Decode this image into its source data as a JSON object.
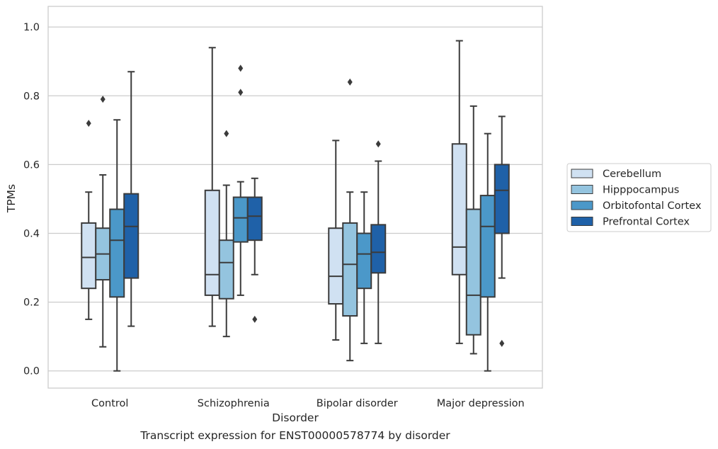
{
  "chart_data": {
    "type": "boxplot",
    "xlabel": "Disorder",
    "ylabel": "TPMs",
    "ylim": [
      -0.05,
      1.06
    ],
    "yticks": [
      0.0,
      0.2,
      0.4,
      0.6,
      0.8,
      1.0
    ],
    "grid": true,
    "legend_position": "right",
    "categories": [
      "Control",
      "Schizophrenia",
      "Bipolar disorder",
      "Major depression"
    ],
    "series": [
      {
        "name": "Cerebellum",
        "color": "#d0e1f2",
        "boxes": [
          {
            "whisker_low": 0.15,
            "q1": 0.24,
            "median": 0.33,
            "q3": 0.43,
            "whisker_high": 0.52,
            "outliers": [
              0.72
            ]
          },
          {
            "whisker_low": 0.13,
            "q1": 0.22,
            "median": 0.28,
            "q3": 0.525,
            "whisker_high": 0.94,
            "outliers": []
          },
          {
            "whisker_low": 0.09,
            "q1": 0.195,
            "median": 0.275,
            "q3": 0.415,
            "whisker_high": 0.67,
            "outliers": []
          },
          {
            "whisker_low": 0.08,
            "q1": 0.28,
            "median": 0.36,
            "q3": 0.66,
            "whisker_high": 0.96,
            "outliers": []
          }
        ]
      },
      {
        "name": "Hipppocampus",
        "color": "#94c4df",
        "boxes": [
          {
            "whisker_low": 0.07,
            "q1": 0.265,
            "median": 0.34,
            "q3": 0.415,
            "whisker_high": 0.57,
            "outliers": [
              0.79
            ]
          },
          {
            "whisker_low": 0.1,
            "q1": 0.21,
            "median": 0.315,
            "q3": 0.38,
            "whisker_high": 0.54,
            "outliers": [
              0.69
            ]
          },
          {
            "whisker_low": 0.03,
            "q1": 0.16,
            "median": 0.31,
            "q3": 0.43,
            "whisker_high": 0.52,
            "outliers": [
              0.84
            ]
          },
          {
            "whisker_low": 0.05,
            "q1": 0.105,
            "median": 0.22,
            "q3": 0.47,
            "whisker_high": 0.77,
            "outliers": []
          }
        ]
      },
      {
        "name": "Orbitofontal Cortex",
        "color": "#4b98c9",
        "boxes": [
          {
            "whisker_low": 0.0,
            "q1": 0.215,
            "median": 0.38,
            "q3": 0.47,
            "whisker_high": 0.73,
            "outliers": []
          },
          {
            "whisker_low": 0.22,
            "q1": 0.375,
            "median": 0.445,
            "q3": 0.505,
            "whisker_high": 0.55,
            "outliers": [
              0.81,
              0.88
            ]
          },
          {
            "whisker_low": 0.08,
            "q1": 0.24,
            "median": 0.34,
            "q3": 0.4,
            "whisker_high": 0.52,
            "outliers": []
          },
          {
            "whisker_low": 0.0,
            "q1": 0.215,
            "median": 0.42,
            "q3": 0.51,
            "whisker_high": 0.69,
            "outliers": []
          }
        ]
      },
      {
        "name": "Prefrontal Cortex",
        "color": "#1f61a8",
        "boxes": [
          {
            "whisker_low": 0.13,
            "q1": 0.27,
            "median": 0.42,
            "q3": 0.515,
            "whisker_high": 0.87,
            "outliers": []
          },
          {
            "whisker_low": 0.28,
            "q1": 0.38,
            "median": 0.45,
            "q3": 0.505,
            "whisker_high": 0.56,
            "outliers": [
              0.15
            ]
          },
          {
            "whisker_low": 0.08,
            "q1": 0.285,
            "median": 0.345,
            "q3": 0.425,
            "whisker_high": 0.61,
            "outliers": [
              0.66
            ]
          },
          {
            "whisker_low": 0.27,
            "q1": 0.4,
            "median": 0.525,
            "q3": 0.6,
            "whisker_high": 0.74,
            "outliers": [
              0.08
            ]
          }
        ]
      }
    ],
    "caption": "Transcript expression for ENST00000578774 by disorder"
  }
}
